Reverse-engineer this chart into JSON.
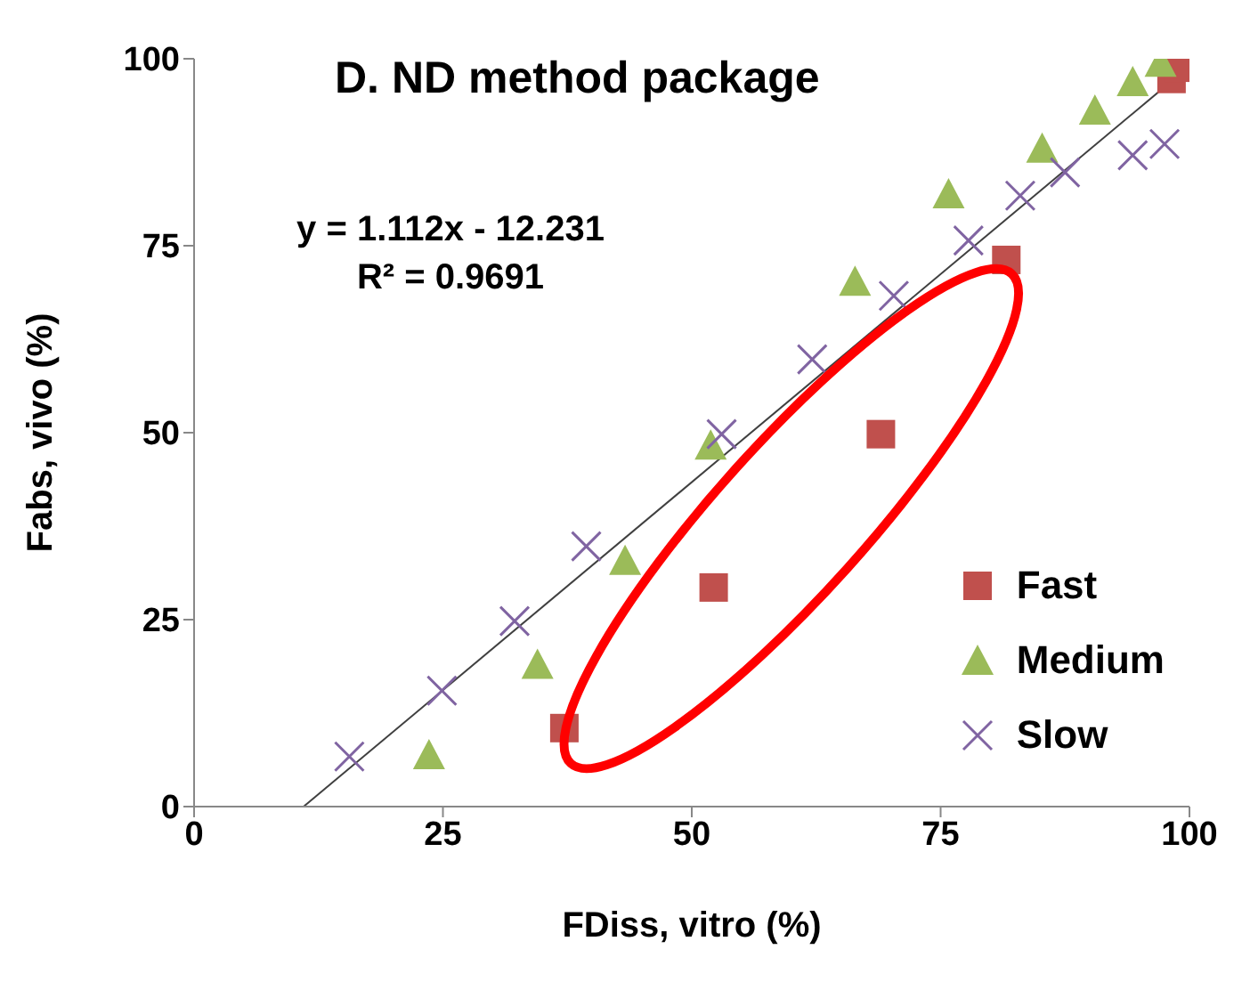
{
  "chart_data": {
    "type": "scatter",
    "title": "D. ND method package",
    "xlabel": "FDiss, vitro (%)",
    "ylabel": "Fabs, vivo (%)",
    "annotations": [
      "y = 1.112x - 12.231",
      "R² = 0.9691"
    ],
    "xlim": [
      0,
      100
    ],
    "xticks": [
      0,
      25,
      50,
      75,
      100
    ],
    "ylim": [
      0,
      100
    ],
    "yticks": [
      0,
      25,
      50,
      75,
      100
    ],
    "grid": false,
    "legend": "bottom right",
    "series": [
      {
        "name": "Fast",
        "color": "#c0504d",
        "marker": "square",
        "x": [
          37.2,
          52.2,
          69,
          81.6,
          98.2,
          99
        ],
        "values": [
          10.5,
          29.3,
          49.8,
          73.1,
          97.3,
          98.8
        ]
      },
      {
        "name": "Medium",
        "color": "#9bbb59",
        "marker": "triangle",
        "x": [
          23.6,
          34.5,
          43.3,
          51.9,
          66.4,
          75.8,
          85.2,
          90.5,
          94.3,
          97.1
        ],
        "values": [
          6.9,
          19,
          32.9,
          48.3,
          70.2,
          81.9,
          88,
          93.1,
          96.9,
          99.5
        ]
      },
      {
        "name": "Slow",
        "color": "#8064a2",
        "marker": "cross",
        "x": [
          15.6,
          24.9,
          32.2,
          39.4,
          53,
          62.1,
          70.3,
          77.8,
          83,
          87.5,
          94.3,
          97.5
        ],
        "values": [
          6.7,
          15.5,
          24.8,
          34.8,
          49.8,
          59.8,
          68.3,
          75.7,
          81.7,
          84.8,
          87.1,
          88.6
        ]
      },
      {
        "type": "line",
        "color": "#404040",
        "x": [
          11,
          99
        ],
        "values": [
          0,
          97.9
        ]
      }
    ]
  }
}
